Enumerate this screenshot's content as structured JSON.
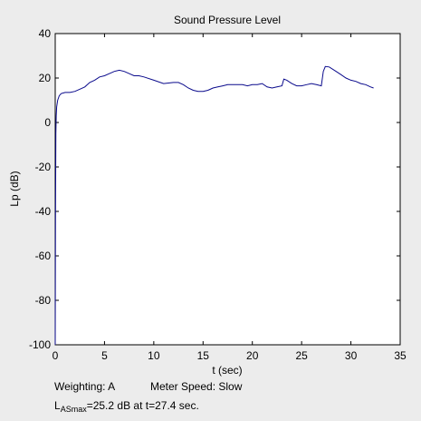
{
  "chart_data": {
    "type": "line",
    "title": "Sound Pressure Level",
    "xlabel": "t (sec)",
    "ylabel": "Lp (dB)",
    "xlim": [
      0,
      35
    ],
    "ylim": [
      -100,
      40
    ],
    "xticks": [
      0,
      5,
      10,
      15,
      20,
      25,
      30,
      35
    ],
    "yticks": [
      40,
      20,
      0,
      -20,
      -40,
      -60,
      -80,
      -100
    ],
    "series": [
      {
        "name": "Lp",
        "color": "#0a0a8c",
        "x": [
          0.0,
          0.03,
          0.06,
          0.1,
          0.15,
          0.25,
          0.4,
          0.6,
          1.0,
          1.5,
          2.0,
          2.5,
          3.0,
          3.5,
          4.0,
          4.5,
          5.0,
          5.5,
          6.0,
          6.5,
          7.0,
          7.5,
          8.0,
          8.5,
          9.0,
          10.0,
          11.0,
          12.0,
          12.5,
          13.0,
          13.5,
          14.0,
          14.5,
          15.0,
          15.5,
          16.0,
          16.5,
          17.0,
          17.5,
          18.0,
          18.5,
          19.0,
          19.5,
          20.0,
          20.5,
          21.0,
          21.5,
          22.0,
          22.5,
          23.0,
          23.2,
          23.5,
          24.0,
          24.5,
          25.0,
          25.5,
          26.0,
          26.5,
          27.0,
          27.2,
          27.4,
          27.8,
          28.5,
          29.0,
          29.5,
          30.0,
          30.5,
          31.0,
          31.5,
          32.0,
          32.3
        ],
        "y": [
          -100,
          -45,
          -5,
          3,
          7,
          10,
          12,
          13,
          13.5,
          13.5,
          14,
          15,
          16,
          18,
          19,
          20.5,
          21,
          22,
          23,
          23.5,
          23,
          22,
          21,
          21,
          20.5,
          19,
          17.5,
          18,
          18,
          17,
          15.5,
          14.5,
          14,
          14,
          14.5,
          15.5,
          16,
          16.5,
          17,
          17,
          17,
          17,
          16.5,
          17,
          17,
          17.5,
          16,
          15.5,
          16,
          16.5,
          19.5,
          19,
          17.5,
          16.5,
          16.5,
          17,
          17.5,
          17,
          16.5,
          23,
          25.2,
          25,
          23,
          21.5,
          20,
          19,
          18.5,
          17.5,
          17,
          16,
          15.5
        ]
      }
    ]
  },
  "info": {
    "weighting": "Weighting: A",
    "meter_speed": "Meter Speed: Slow",
    "lasmax_prefix": "L",
    "lasmax_sub": "ASmax",
    "lasmax_text": "=25.2 dB at t=27.4 sec."
  }
}
